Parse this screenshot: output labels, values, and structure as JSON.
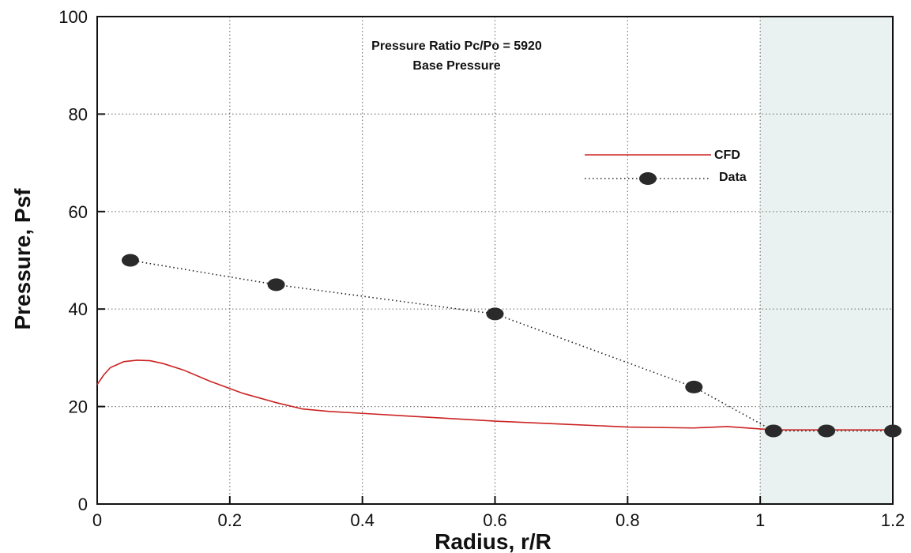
{
  "chart_data": {
    "type": "line",
    "title": "Pressure Ratio Pc/Po = 5920",
    "subtitle": "Base Pressure",
    "xlabel": "Radius, r/R",
    "ylabel": "Pressure, Psf",
    "xlim": [
      0,
      1.2
    ],
    "ylim": [
      0,
      100
    ],
    "xticks": [
      0,
      0.2,
      0.4,
      0.6,
      0.8,
      1,
      1.2
    ],
    "xtick_labels": [
      "0",
      "0.2",
      "0.4",
      "0.6",
      "0.8",
      "1",
      "1.2"
    ],
    "yticks": [
      0,
      20,
      40,
      60,
      80,
      100
    ],
    "ytick_labels": [
      "0",
      "20",
      "40",
      "60",
      "80",
      "100"
    ],
    "grid": true,
    "legend_position": "top-right",
    "shaded_region": {
      "x_from": 1.0,
      "x_to": 1.2
    },
    "series": [
      {
        "name": "CFD",
        "style": "solid",
        "color": "#cc2222",
        "x": [
          0.0,
          0.01,
          0.02,
          0.04,
          0.06,
          0.08,
          0.1,
          0.13,
          0.17,
          0.22,
          0.27,
          0.31,
          0.35,
          0.4,
          0.5,
          0.6,
          0.7,
          0.8,
          0.9,
          0.95,
          1.0,
          1.02,
          1.1,
          1.2
        ],
        "y": [
          24.5,
          26.5,
          28.0,
          29.2,
          29.5,
          29.4,
          28.8,
          27.5,
          25.2,
          22.7,
          20.8,
          19.5,
          19.0,
          18.6,
          17.8,
          17.0,
          16.4,
          15.8,
          15.6,
          15.9,
          15.4,
          15.2,
          15.2,
          15.2
        ]
      },
      {
        "name": "Data",
        "style": "dotted",
        "color": "#222222",
        "marker": "ellipse",
        "x": [
          0.05,
          0.27,
          0.6,
          0.9,
          1.02,
          1.1,
          1.2
        ],
        "y": [
          50,
          45,
          39,
          24,
          15,
          15,
          15
        ]
      }
    ]
  },
  "colors": {
    "cfd_line": "#cc2222",
    "data_marker": "#2a2a2a",
    "data_line": "#222222",
    "grid": "#777777",
    "axis": "#111111",
    "shade": "#e9f2f0"
  }
}
